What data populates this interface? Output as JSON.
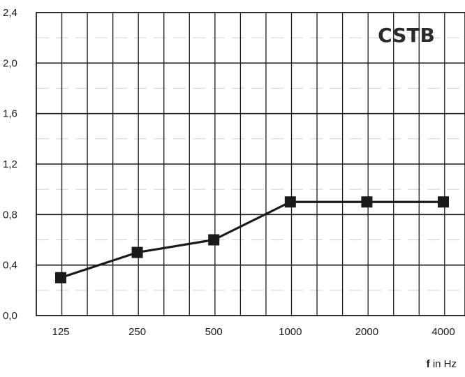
{
  "chart_data": {
    "type": "line",
    "categories": [
      "125",
      "250",
      "500",
      "1000",
      "2000",
      "4000"
    ],
    "series": [
      {
        "values": [
          0.3,
          0.5,
          0.6,
          0.9,
          0.9,
          0.9
        ]
      }
    ],
    "y_ticks": [
      "0,0",
      "0,4",
      "0,8",
      "1,2",
      "1,6",
      "2,0",
      "2,4"
    ],
    "ylim": [
      0,
      2.4
    ],
    "xlabel_var": "f",
    "xlabel_unit": "in Hz",
    "logo": "CSTB",
    "grid": true,
    "colors": {
      "line": "#1a1a1a",
      "grid": "#1a1a1a",
      "marker": "#1a1a1a"
    }
  }
}
